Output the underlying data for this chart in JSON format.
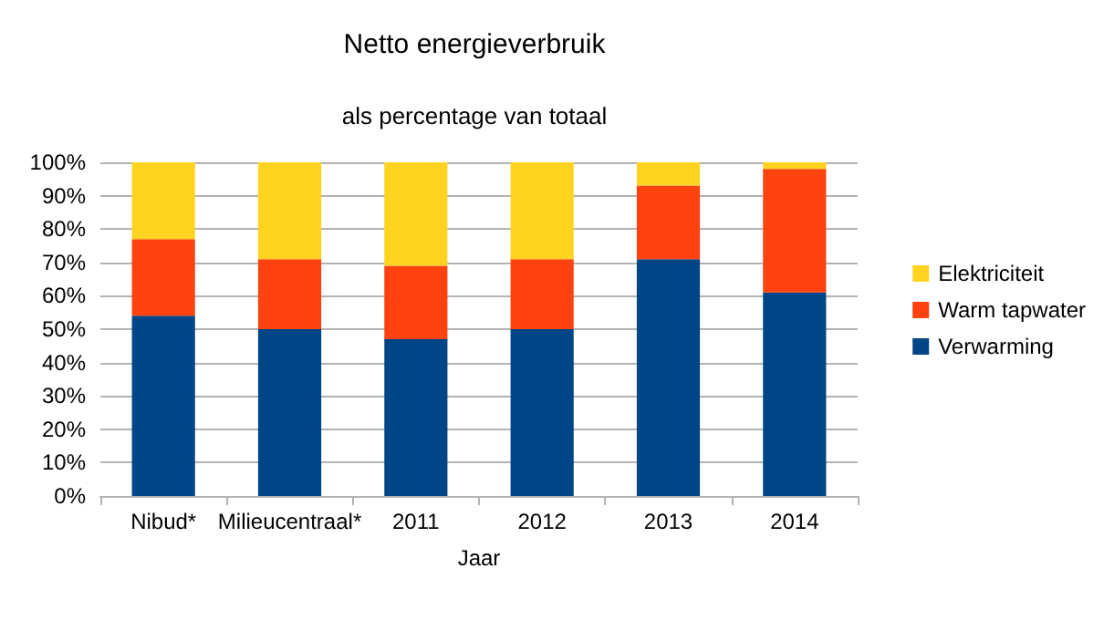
{
  "chart_data": {
    "type": "bar",
    "title": "Netto energieverbruik",
    "subtitle": "als percentage van totaal",
    "xlabel": "Jaar",
    "categories": [
      "Nibud*",
      "Milieucentraal*",
      "2011",
      "2012",
      "2013",
      "2014"
    ],
    "stacked": true,
    "series": [
      {
        "name": "Verwarming",
        "color": "#004586",
        "values": [
          54,
          50,
          47,
          50,
          71,
          61
        ]
      },
      {
        "name": "Warm tapwater",
        "color": "#ff420e",
        "values": [
          23,
          21,
          22,
          21,
          22,
          37
        ]
      },
      {
        "name": "Elektriciteit",
        "color": "#ffd320",
        "values": [
          23,
          29,
          31,
          29,
          7,
          2
        ]
      }
    ],
    "ylim": [
      0,
      100
    ],
    "yticks": [
      {
        "value": 0,
        "label": "0%"
      },
      {
        "value": 10,
        "label": "10%"
      },
      {
        "value": 20,
        "label": "20%"
      },
      {
        "value": 30,
        "label": "30%"
      },
      {
        "value": 40,
        "label": "40%"
      },
      {
        "value": 50,
        "label": "50%"
      },
      {
        "value": 60,
        "label": "60%"
      },
      {
        "value": 70,
        "label": "70%"
      },
      {
        "value": 80,
        "label": "80%"
      },
      {
        "value": 90,
        "label": "90%"
      },
      {
        "value": 100,
        "label": "100%"
      }
    ],
    "grid": "y",
    "legend": "right"
  }
}
